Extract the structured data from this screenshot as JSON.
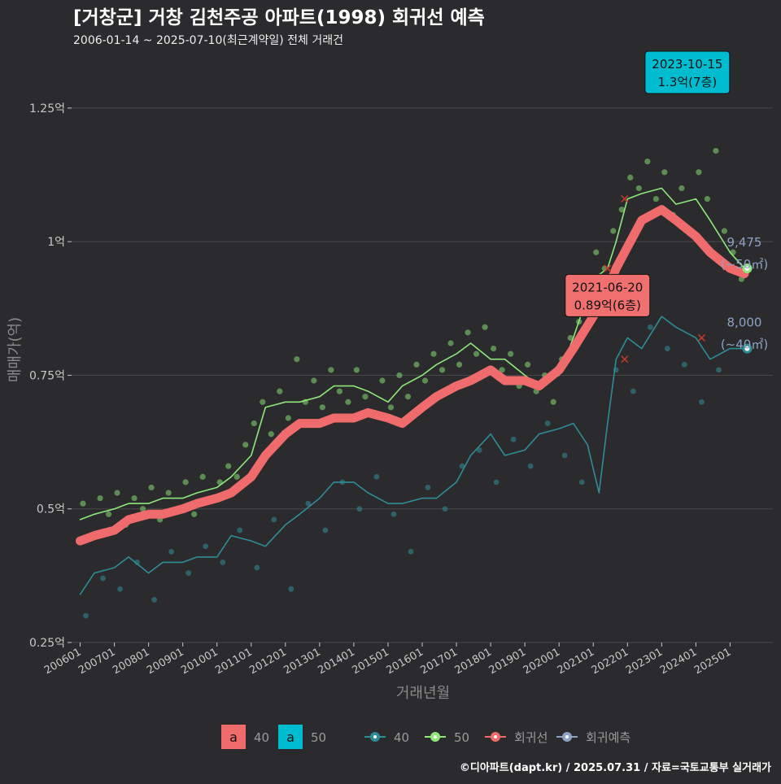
{
  "header": {
    "title": "[거창군] 거창 김천주공 아파트(1998) 회귀선 예측",
    "subtitle": "2006-01-14 ~ 2025-07-10(최근계약일) 전체 거래건"
  },
  "footer": {
    "caption": "©디아파트(dapt.kr) / 2025.07.31 / 자료=국토교통부 실거래가"
  },
  "colors": {
    "background": "#2b2b2d",
    "grid": "#4a4a4c",
    "s40": "#2e8c96",
    "s50": "#8ee87a",
    "regression": "#f06b6b",
    "forecast": "#8da2c4",
    "callout_cyan": "#00bcd0",
    "callout_red": "#f07070"
  },
  "legend": {
    "label_boxes": [
      {
        "glyph": "a",
        "label": "40",
        "color": "#f06b6b"
      },
      {
        "glyph": "a",
        "label": "50",
        "color": "#00bcd0"
      }
    ],
    "series_keys": [
      {
        "label": "40",
        "color": "#2e8c96"
      },
      {
        "label": "50",
        "color": "#8ee87a"
      },
      {
        "label": "회귀선",
        "color": "#f06b6b"
      },
      {
        "label": "회귀예측",
        "color": "#8da2c4"
      }
    ]
  },
  "chart_data": {
    "type": "line",
    "xlabel": "거래년월",
    "ylabel": "매매가(억)",
    "x_is_date": true,
    "ylim": [
      0.25,
      1.3
    ],
    "yticks": [
      0.25,
      0.5,
      0.75,
      1.0,
      1.25
    ],
    "ytick_labels": [
      "0.25억",
      "0.5억",
      "0.75억",
      "1억",
      "1.25억"
    ],
    "xticks": [
      "2006-01",
      "2007-01",
      "2008-01",
      "2009-01",
      "2010-01",
      "2011-01",
      "2012-01",
      "2013-01",
      "2014-01",
      "2015-01",
      "2016-01",
      "2017-01",
      "2018-01",
      "2019-01",
      "2020-01",
      "2021-01",
      "2022-01",
      "2023-01",
      "2024-01",
      "2025-01"
    ],
    "xtick_labels": [
      "200601",
      "200701",
      "200801",
      "200901",
      "201001",
      "201101",
      "201201",
      "201301",
      "201401",
      "201501",
      "201601",
      "201701",
      "201801",
      "201901",
      "202001",
      "202101",
      "202201",
      "202301",
      "202401",
      "202501"
    ],
    "grid": true,
    "series": [
      {
        "name": "40",
        "points": [
          [
            "2006-01",
            0.34
          ],
          [
            "2006-06",
            0.38
          ],
          [
            "2007-01",
            0.39
          ],
          [
            "2007-06",
            0.41
          ],
          [
            "2008-01",
            0.38
          ],
          [
            "2008-06",
            0.4
          ],
          [
            "2009-01",
            0.4
          ],
          [
            "2009-06",
            0.41
          ],
          [
            "2010-01",
            0.41
          ],
          [
            "2010-06",
            0.45
          ],
          [
            "2011-01",
            0.44
          ],
          [
            "2011-06",
            0.43
          ],
          [
            "2012-01",
            0.47
          ],
          [
            "2012-06",
            0.49
          ],
          [
            "2013-01",
            0.52
          ],
          [
            "2013-06",
            0.55
          ],
          [
            "2014-01",
            0.55
          ],
          [
            "2014-06",
            0.53
          ],
          [
            "2015-01",
            0.51
          ],
          [
            "2015-06",
            0.51
          ],
          [
            "2016-01",
            0.52
          ],
          [
            "2016-06",
            0.52
          ],
          [
            "2017-01",
            0.55
          ],
          [
            "2017-06",
            0.6
          ],
          [
            "2018-01",
            0.64
          ],
          [
            "2018-06",
            0.6
          ],
          [
            "2019-01",
            0.61
          ],
          [
            "2019-06",
            0.64
          ],
          [
            "2020-01",
            0.65
          ],
          [
            "2020-06",
            0.66
          ],
          [
            "2020-11",
            0.62
          ],
          [
            "2021-03",
            0.53
          ],
          [
            "2021-06",
            0.66
          ],
          [
            "2021-09",
            0.78
          ],
          [
            "2022-01",
            0.82
          ],
          [
            "2022-06",
            0.8
          ],
          [
            "2023-01",
            0.86
          ],
          [
            "2023-06",
            0.84
          ],
          [
            "2024-01",
            0.82
          ],
          [
            "2024-06",
            0.78
          ],
          [
            "2025-01",
            0.8
          ],
          [
            "2025-06",
            0.8
          ]
        ]
      },
      {
        "name": "50",
        "points": [
          [
            "2006-01",
            0.48
          ],
          [
            "2006-06",
            0.49
          ],
          [
            "2007-01",
            0.5
          ],
          [
            "2007-06",
            0.51
          ],
          [
            "2008-01",
            0.51
          ],
          [
            "2008-06",
            0.52
          ],
          [
            "2009-01",
            0.52
          ],
          [
            "2009-06",
            0.53
          ],
          [
            "2010-01",
            0.54
          ],
          [
            "2010-06",
            0.56
          ],
          [
            "2011-01",
            0.6
          ],
          [
            "2011-06",
            0.69
          ],
          [
            "2012-01",
            0.7
          ],
          [
            "2012-06",
            0.7
          ],
          [
            "2013-01",
            0.71
          ],
          [
            "2013-06",
            0.73
          ],
          [
            "2014-01",
            0.73
          ],
          [
            "2014-06",
            0.72
          ],
          [
            "2015-01",
            0.7
          ],
          [
            "2015-06",
            0.73
          ],
          [
            "2016-01",
            0.75
          ],
          [
            "2016-06",
            0.77
          ],
          [
            "2017-01",
            0.79
          ],
          [
            "2017-06",
            0.81
          ],
          [
            "2018-01",
            0.78
          ],
          [
            "2018-06",
            0.78
          ],
          [
            "2019-01",
            0.75
          ],
          [
            "2019-06",
            0.73
          ],
          [
            "2020-01",
            0.75
          ],
          [
            "2020-06",
            0.82
          ],
          [
            "2021-01",
            0.93
          ],
          [
            "2021-06",
            0.95
          ],
          [
            "2021-09",
            1.0
          ],
          [
            "2022-01",
            1.08
          ],
          [
            "2022-06",
            1.09
          ],
          [
            "2023-01",
            1.1
          ],
          [
            "2023-06",
            1.07
          ],
          [
            "2024-01",
            1.08
          ],
          [
            "2024-06",
            1.04
          ],
          [
            "2025-01",
            0.98
          ],
          [
            "2025-06",
            0.95
          ]
        ]
      },
      {
        "name": "회귀선",
        "points": [
          [
            "2006-01",
            0.44
          ],
          [
            "2006-06",
            0.45
          ],
          [
            "2007-01",
            0.46
          ],
          [
            "2007-06",
            0.48
          ],
          [
            "2008-01",
            0.49
          ],
          [
            "2008-06",
            0.49
          ],
          [
            "2009-01",
            0.5
          ],
          [
            "2009-06",
            0.51
          ],
          [
            "2010-01",
            0.52
          ],
          [
            "2010-06",
            0.53
          ],
          [
            "2011-01",
            0.56
          ],
          [
            "2011-06",
            0.6
          ],
          [
            "2012-01",
            0.64
          ],
          [
            "2012-06",
            0.66
          ],
          [
            "2013-01",
            0.66
          ],
          [
            "2013-06",
            0.67
          ],
          [
            "2014-01",
            0.67
          ],
          [
            "2014-06",
            0.68
          ],
          [
            "2015-01",
            0.67
          ],
          [
            "2015-06",
            0.66
          ],
          [
            "2016-01",
            0.69
          ],
          [
            "2016-06",
            0.71
          ],
          [
            "2017-01",
            0.73
          ],
          [
            "2017-06",
            0.74
          ],
          [
            "2018-01",
            0.76
          ],
          [
            "2018-06",
            0.74
          ],
          [
            "2019-01",
            0.74
          ],
          [
            "2019-06",
            0.73
          ],
          [
            "2020-01",
            0.76
          ],
          [
            "2020-06",
            0.8
          ],
          [
            "2021-01",
            0.86
          ],
          [
            "2021-06",
            0.91
          ],
          [
            "2021-09",
            0.95
          ],
          [
            "2022-01",
            0.99
          ],
          [
            "2022-06",
            1.04
          ],
          [
            "2023-01",
            1.06
          ],
          [
            "2023-06",
            1.04
          ],
          [
            "2024-01",
            1.01
          ],
          [
            "2024-06",
            0.98
          ],
          [
            "2025-01",
            0.95
          ],
          [
            "2025-06",
            0.94
          ]
        ]
      }
    ],
    "scatter_50": [
      [
        "2006-02",
        0.51
      ],
      [
        "2006-05",
        0.45
      ],
      [
        "2006-08",
        0.52
      ],
      [
        "2006-11",
        0.49
      ],
      [
        "2007-02",
        0.53
      ],
      [
        "2007-05",
        0.47
      ],
      [
        "2007-08",
        0.52
      ],
      [
        "2007-11",
        0.5
      ],
      [
        "2008-02",
        0.54
      ],
      [
        "2008-05",
        0.48
      ],
      [
        "2008-08",
        0.53
      ],
      [
        "2008-11",
        0.5
      ],
      [
        "2009-02",
        0.55
      ],
      [
        "2009-05",
        0.49
      ],
      [
        "2009-08",
        0.56
      ],
      [
        "2009-11",
        0.52
      ],
      [
        "2010-02",
        0.55
      ],
      [
        "2010-05",
        0.58
      ],
      [
        "2010-08",
        0.56
      ],
      [
        "2010-11",
        0.62
      ],
      [
        "2011-02",
        0.66
      ],
      [
        "2011-05",
        0.7
      ],
      [
        "2011-08",
        0.64
      ],
      [
        "2011-11",
        0.72
      ],
      [
        "2012-02",
        0.67
      ],
      [
        "2012-05",
        0.78
      ],
      [
        "2012-08",
        0.7
      ],
      [
        "2012-11",
        0.74
      ],
      [
        "2013-02",
        0.69
      ],
      [
        "2013-05",
        0.76
      ],
      [
        "2013-08",
        0.72
      ],
      [
        "2013-11",
        0.7
      ],
      [
        "2014-02",
        0.76
      ],
      [
        "2014-05",
        0.71
      ],
      [
        "2014-08",
        0.68
      ],
      [
        "2014-11",
        0.74
      ],
      [
        "2015-02",
        0.69
      ],
      [
        "2015-05",
        0.75
      ],
      [
        "2015-08",
        0.71
      ],
      [
        "2015-11",
        0.77
      ],
      [
        "2016-02",
        0.74
      ],
      [
        "2016-05",
        0.79
      ],
      [
        "2016-08",
        0.76
      ],
      [
        "2016-11",
        0.81
      ],
      [
        "2017-02",
        0.77
      ],
      [
        "2017-05",
        0.83
      ],
      [
        "2017-08",
        0.79
      ],
      [
        "2017-11",
        0.84
      ],
      [
        "2018-02",
        0.8
      ],
      [
        "2018-05",
        0.76
      ],
      [
        "2018-08",
        0.79
      ],
      [
        "2018-11",
        0.73
      ],
      [
        "2019-02",
        0.77
      ],
      [
        "2019-05",
        0.72
      ],
      [
        "2019-08",
        0.75
      ],
      [
        "2019-11",
        0.7
      ],
      [
        "2020-02",
        0.78
      ],
      [
        "2020-05",
        0.82
      ],
      [
        "2020-08",
        0.85
      ],
      [
        "2020-11",
        0.92
      ],
      [
        "2021-02",
        0.98
      ],
      [
        "2021-05",
        0.95
      ],
      [
        "2021-08",
        1.02
      ],
      [
        "2021-11",
        1.06
      ],
      [
        "2022-02",
        1.12
      ],
      [
        "2022-05",
        1.1
      ],
      [
        "2022-08",
        1.15
      ],
      [
        "2022-11",
        1.08
      ],
      [
        "2023-02",
        1.13
      ],
      [
        "2023-05",
        1.05
      ],
      [
        "2023-08",
        1.1
      ],
      [
        "2023-10",
        1.3
      ],
      [
        "2023-11",
        1.02
      ],
      [
        "2024-02",
        1.13
      ],
      [
        "2024-05",
        1.08
      ],
      [
        "2024-08",
        1.17
      ],
      [
        "2024-11",
        1.02
      ],
      [
        "2025-02",
        0.98
      ],
      [
        "2025-05",
        0.93
      ]
    ],
    "scatter_40": [
      [
        "2006-03",
        0.3
      ],
      [
        "2006-09",
        0.37
      ],
      [
        "2007-03",
        0.35
      ],
      [
        "2007-09",
        0.4
      ],
      [
        "2008-03",
        0.33
      ],
      [
        "2008-09",
        0.42
      ],
      [
        "2009-03",
        0.38
      ],
      [
        "2009-09",
        0.43
      ],
      [
        "2010-03",
        0.4
      ],
      [
        "2010-09",
        0.46
      ],
      [
        "2011-03",
        0.39
      ],
      [
        "2011-09",
        0.48
      ],
      [
        "2012-03",
        0.35
      ],
      [
        "2012-09",
        0.51
      ],
      [
        "2013-03",
        0.46
      ],
      [
        "2013-09",
        0.55
      ],
      [
        "2014-03",
        0.5
      ],
      [
        "2014-09",
        0.56
      ],
      [
        "2015-03",
        0.49
      ],
      [
        "2015-09",
        0.42
      ],
      [
        "2016-03",
        0.54
      ],
      [
        "2016-09",
        0.5
      ],
      [
        "2017-03",
        0.58
      ],
      [
        "2017-09",
        0.61
      ],
      [
        "2018-03",
        0.55
      ],
      [
        "2018-09",
        0.63
      ],
      [
        "2019-03",
        0.58
      ],
      [
        "2019-09",
        0.66
      ],
      [
        "2020-03",
        0.6
      ],
      [
        "2020-09",
        0.55
      ],
      [
        "2021-09",
        0.76
      ],
      [
        "2022-03",
        0.72
      ],
      [
        "2022-09",
        0.84
      ],
      [
        "2023-03",
        0.8
      ],
      [
        "2023-09",
        0.77
      ],
      [
        "2024-03",
        0.7
      ],
      [
        "2024-09",
        0.76
      ]
    ],
    "cross_markers": [
      [
        "2021-06",
        0.95
      ],
      [
        "2021-12",
        1.08
      ],
      [
        "2021-12",
        0.78
      ],
      [
        "2024-03",
        0.82
      ]
    ],
    "endpoints": [
      {
        "name": "50",
        "x": "2025-07",
        "y": 0.95,
        "value_label": "9,475",
        "area_label": "(~50㎡)"
      },
      {
        "name": "40",
        "x": "2025-07",
        "y": 0.8,
        "value_label": "8,000",
        "area_label": "(~40㎡)"
      }
    ],
    "callouts": [
      {
        "date": "2023-10-15",
        "text": "1.3억(7층)",
        "x": "2023-10",
        "y": 1.3,
        "style": "cyan"
      },
      {
        "date": "2021-06-20",
        "text": "0.89억(6층)",
        "x": "2021-06",
        "y": 0.89,
        "style": "red"
      }
    ]
  }
}
